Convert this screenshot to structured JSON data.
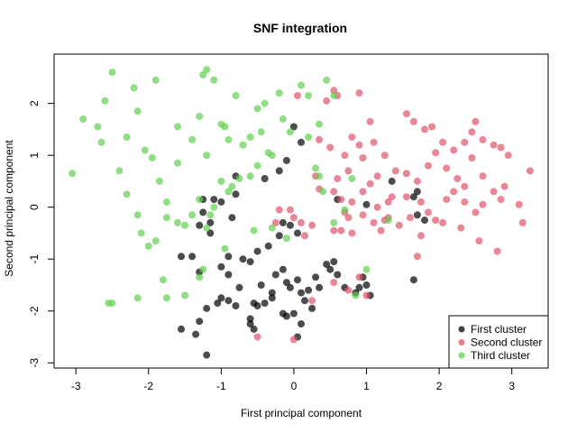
{
  "chart_data": {
    "type": "scatter",
    "title": "SNF integration",
    "xlabel": "First principal component",
    "ylabel": "Second principal component",
    "xlim": [
      -3.3,
      3.5
    ],
    "ylim": [
      -3.1,
      2.95
    ],
    "x_ticks": [
      -3,
      -2,
      -1,
      0,
      1,
      2,
      3
    ],
    "y_ticks": [
      -3,
      -2,
      -1,
      0,
      1,
      2
    ],
    "grid": false,
    "legend_position": "bottom-right",
    "series": [
      {
        "name": "First cluster",
        "color": "#000000",
        "points": [
          [
            -1.2,
            -2.85
          ],
          [
            -1.35,
            -2.45
          ],
          [
            -1.3,
            -2.2
          ],
          [
            -1.2,
            -1.95
          ],
          [
            -1.05,
            -1.85
          ],
          [
            -0.9,
            -1.8
          ],
          [
            -0.8,
            -1.9
          ],
          [
            -0.6,
            -2.25
          ],
          [
            -0.55,
            -2.35
          ],
          [
            -0.5,
            -1.9
          ],
          [
            -0.45,
            -1.5
          ],
          [
            -0.4,
            -1.85
          ],
          [
            -0.3,
            -1.65
          ],
          [
            -0.25,
            -1.3
          ],
          [
            -0.15,
            -1.2
          ],
          [
            -0.1,
            -1.45
          ],
          [
            -0.05,
            -1.55
          ],
          [
            0.05,
            -1.4
          ],
          [
            0.1,
            -1.65
          ],
          [
            0.15,
            -1.8
          ],
          [
            0.2,
            -1.6
          ],
          [
            0.3,
            -1.35
          ],
          [
            0.35,
            -1.55
          ],
          [
            0.45,
            -1.1
          ],
          [
            0.5,
            -1.2
          ],
          [
            0.55,
            -1.05
          ],
          [
            0.6,
            -1.3
          ],
          [
            0.7,
            -1.55
          ],
          [
            0.85,
            -1.65
          ],
          [
            0.9,
            -1.55
          ],
          [
            0.95,
            -1.35
          ],
          [
            1.0,
            -1.5
          ],
          [
            1.05,
            -1.7
          ],
          [
            -0.15,
            -2.05
          ],
          [
            -0.1,
            -2.1
          ],
          [
            0.0,
            -2.05
          ],
          [
            0.1,
            -2.25
          ],
          [
            -1.3,
            -1.25
          ],
          [
            -1.4,
            -0.95
          ],
          [
            -1.55,
            -0.95
          ],
          [
            -1.15,
            -0.5
          ],
          [
            -1.0,
            -1.15
          ],
          [
            -0.9,
            -0.95
          ],
          [
            -0.7,
            -1.0
          ],
          [
            -0.6,
            -1.05
          ],
          [
            -0.5,
            -0.85
          ],
          [
            -0.35,
            -0.75
          ],
          [
            -0.2,
            -0.55
          ],
          [
            -0.15,
            -0.3
          ],
          [
            -0.05,
            -0.35
          ],
          [
            0.05,
            -0.5
          ],
          [
            -1.25,
            0.15
          ],
          [
            -1.25,
            -0.1
          ],
          [
            -1.15,
            -0.3
          ],
          [
            -1.1,
            0.15
          ],
          [
            -1.0,
            0.1
          ],
          [
            -0.85,
            -0.2
          ],
          [
            -0.8,
            0.6
          ],
          [
            -0.4,
            0.55
          ],
          [
            -0.2,
            0.7
          ],
          [
            -0.1,
            0.9
          ],
          [
            0.0,
            1.55
          ],
          [
            0.1,
            1.25
          ],
          [
            0.6,
            0.15
          ],
          [
            1.0,
            0.05
          ],
          [
            1.35,
            0.5
          ],
          [
            1.65,
            0.2
          ],
          [
            1.7,
            0.3
          ],
          [
            1.7,
            -0.15
          ],
          [
            1.8,
            -0.25
          ],
          [
            1.65,
            -1.4
          ],
          [
            -0.6,
            -2.15
          ],
          [
            0.05,
            -2.5
          ],
          [
            -1.55,
            -2.35
          ],
          [
            -1.0,
            -1.75
          ],
          [
            -0.9,
            -1.3
          ],
          [
            -0.75,
            -1.55
          ],
          [
            -0.55,
            -1.85
          ],
          [
            -0.3,
            -1.75
          ],
          [
            0.25,
            -1.95
          ],
          [
            -0.8,
            0.25
          ],
          [
            -1.3,
            -0.35
          ]
        ]
      },
      {
        "name": "Second cluster",
        "color": "#DF536B",
        "points": [
          [
            0.05,
            2.15
          ],
          [
            0.45,
            2.05
          ],
          [
            0.55,
            2.25
          ],
          [
            0.6,
            2.15
          ],
          [
            0.9,
            2.2
          ],
          [
            1.05,
            1.65
          ],
          [
            0.35,
            1.3
          ],
          [
            0.5,
            1.15
          ],
          [
            0.7,
            1.0
          ],
          [
            0.8,
            1.35
          ],
          [
            0.9,
            1.2
          ],
          [
            0.95,
            0.95
          ],
          [
            1.1,
            1.25
          ],
          [
            1.25,
            1.0
          ],
          [
            1.4,
            0.7
          ],
          [
            0.75,
            0.7
          ],
          [
            0.6,
            0.55
          ],
          [
            0.55,
            0.3
          ],
          [
            0.35,
            0.35
          ],
          [
            0.3,
            0.6
          ],
          [
            0.65,
            0.15
          ],
          [
            0.8,
            0.1
          ],
          [
            0.95,
            0.3
          ],
          [
            1.05,
            0.45
          ],
          [
            1.15,
            0.0
          ],
          [
            1.3,
            0.1
          ],
          [
            1.35,
            0.2
          ],
          [
            0.7,
            -0.1
          ],
          [
            0.75,
            -0.2
          ],
          [
            0.95,
            -0.15
          ],
          [
            1.1,
            -0.3
          ],
          [
            1.2,
            -0.45
          ],
          [
            1.3,
            -0.2
          ],
          [
            0.55,
            -0.45
          ],
          [
            0.65,
            -0.45
          ],
          [
            0.8,
            -0.5
          ],
          [
            0.25,
            -0.35
          ],
          [
            -0.2,
            -0.05
          ],
          [
            -0.25,
            -0.3
          ],
          [
            -0.05,
            -0.05
          ],
          [
            0.0,
            -0.2
          ],
          [
            0.1,
            -0.3
          ],
          [
            0.15,
            -0.55
          ],
          [
            1.55,
            1.8
          ],
          [
            1.65,
            1.65
          ],
          [
            1.8,
            1.5
          ],
          [
            1.9,
            1.55
          ],
          [
            2.05,
            1.25
          ],
          [
            2.2,
            1.1
          ],
          [
            2.35,
            1.25
          ],
          [
            2.45,
            1.45
          ],
          [
            2.5,
            1.65
          ],
          [
            2.6,
            1.3
          ],
          [
            2.75,
            1.2
          ],
          [
            2.85,
            1.15
          ],
          [
            2.95,
            1.0
          ],
          [
            1.55,
            0.65
          ],
          [
            1.7,
            0.5
          ],
          [
            1.85,
            0.8
          ],
          [
            1.95,
            1.05
          ],
          [
            2.1,
            0.75
          ],
          [
            2.25,
            0.55
          ],
          [
            2.35,
            0.4
          ],
          [
            2.45,
            0.95
          ],
          [
            2.6,
            0.6
          ],
          [
            2.75,
            0.3
          ],
          [
            2.9,
            0.4
          ],
          [
            1.75,
            0.1
          ],
          [
            1.85,
            -0.1
          ],
          [
            1.95,
            -0.25
          ],
          [
            2.1,
            0.15
          ],
          [
            2.2,
            0.3
          ],
          [
            2.35,
            0.1
          ],
          [
            2.5,
            -0.1
          ],
          [
            2.6,
            0.05
          ],
          [
            2.85,
            0.15
          ],
          [
            3.1,
            0.05
          ],
          [
            3.15,
            -0.3
          ],
          [
            3.25,
            0.7
          ],
          [
            2.8,
            -0.85
          ],
          [
            2.55,
            -0.65
          ],
          [
            2.3,
            -0.4
          ],
          [
            2.05,
            -0.3
          ],
          [
            1.75,
            -0.55
          ],
          [
            1.7,
            -0.95
          ],
          [
            1.45,
            -0.35
          ],
          [
            1.55,
            0.2
          ],
          [
            1.6,
            -0.2
          ],
          [
            0.9,
            -1.35
          ],
          [
            0.75,
            -1.6
          ],
          [
            1.0,
            -1.7
          ],
          [
            0.55,
            -1.45
          ],
          [
            0.25,
            -1.8
          ],
          [
            -0.5,
            -2.5
          ],
          [
            0.0,
            -2.55
          ],
          [
            1.25,
            -0.25
          ],
          [
            1.15,
            0.6
          ]
        ]
      },
      {
        "name": "Third cluster",
        "color": "#61D04F",
        "points": [
          [
            -3.05,
            0.65
          ],
          [
            -2.9,
            1.7
          ],
          [
            -2.65,
            1.25
          ],
          [
            -2.6,
            2.05
          ],
          [
            -2.5,
            2.6
          ],
          [
            -2.4,
            0.7
          ],
          [
            -2.3,
            1.35
          ],
          [
            -2.2,
            2.3
          ],
          [
            -2.15,
            1.85
          ],
          [
            -2.05,
            1.1
          ],
          [
            -1.95,
            0.95
          ],
          [
            -1.9,
            2.45
          ],
          [
            -1.85,
            0.5
          ],
          [
            -1.75,
            0.1
          ],
          [
            -1.6,
            1.55
          ],
          [
            -1.4,
            1.3
          ],
          [
            -1.3,
            1.75
          ],
          [
            -1.25,
            2.55
          ],
          [
            -1.2,
            2.65
          ],
          [
            -1.1,
            2.45
          ],
          [
            -1.0,
            1.6
          ],
          [
            -0.95,
            1.55
          ],
          [
            -0.9,
            1.3
          ],
          [
            -0.8,
            2.15
          ],
          [
            -0.7,
            1.2
          ],
          [
            -0.6,
            1.35
          ],
          [
            -0.5,
            1.9
          ],
          [
            -0.45,
            1.45
          ],
          [
            -0.4,
            2.0
          ],
          [
            -0.35,
            1.05
          ],
          [
            -0.3,
            1.0
          ],
          [
            -0.2,
            2.2
          ],
          [
            -0.15,
            1.7
          ],
          [
            -0.05,
            1.45
          ],
          [
            0.1,
            2.35
          ],
          [
            0.2,
            2.15
          ],
          [
            0.35,
            1.6
          ],
          [
            0.45,
            2.45
          ],
          [
            0.55,
            2.15
          ],
          [
            -0.5,
            0.8
          ],
          [
            -0.6,
            0.6
          ],
          [
            -0.75,
            0.55
          ],
          [
            -0.85,
            0.4
          ],
          [
            -0.9,
            0.3
          ],
          [
            -1.0,
            0.5
          ],
          [
            -1.1,
            0.0
          ],
          [
            -1.15,
            -0.15
          ],
          [
            -1.3,
            0.15
          ],
          [
            -1.4,
            -0.15
          ],
          [
            -1.5,
            -0.35
          ],
          [
            -1.6,
            -0.3
          ],
          [
            -1.75,
            -0.2
          ],
          [
            -1.9,
            -0.65
          ],
          [
            -2.0,
            -0.75
          ],
          [
            -2.1,
            -0.5
          ],
          [
            -2.15,
            -0.15
          ],
          [
            -2.3,
            0.25
          ],
          [
            -2.5,
            -1.85
          ],
          [
            -2.55,
            -1.85
          ],
          [
            -2.15,
            -1.75
          ],
          [
            -1.8,
            -1.4
          ],
          [
            -1.75,
            -1.75
          ],
          [
            -1.5,
            -1.7
          ],
          [
            -1.25,
            -1.2
          ],
          [
            -1.3,
            -1.35
          ],
          [
            -1.2,
            -0.4
          ],
          [
            -0.95,
            -0.8
          ],
          [
            -0.55,
            -0.45
          ],
          [
            -0.3,
            -0.4
          ],
          [
            -0.1,
            -0.6
          ],
          [
            0.3,
            0.75
          ],
          [
            0.35,
            0.6
          ],
          [
            0.4,
            0.3
          ],
          [
            0.55,
            -0.3
          ],
          [
            0.7,
            -0.05
          ],
          [
            0.8,
            0.55
          ],
          [
            1.0,
            -1.2
          ],
          [
            0.85,
            -1.7
          ],
          [
            1.3,
            -0.25
          ],
          [
            0.2,
            1.35
          ],
          [
            -2.7,
            1.55
          ],
          [
            -1.2,
            1.0
          ],
          [
            -1.6,
            0.85
          ]
        ]
      }
    ]
  }
}
